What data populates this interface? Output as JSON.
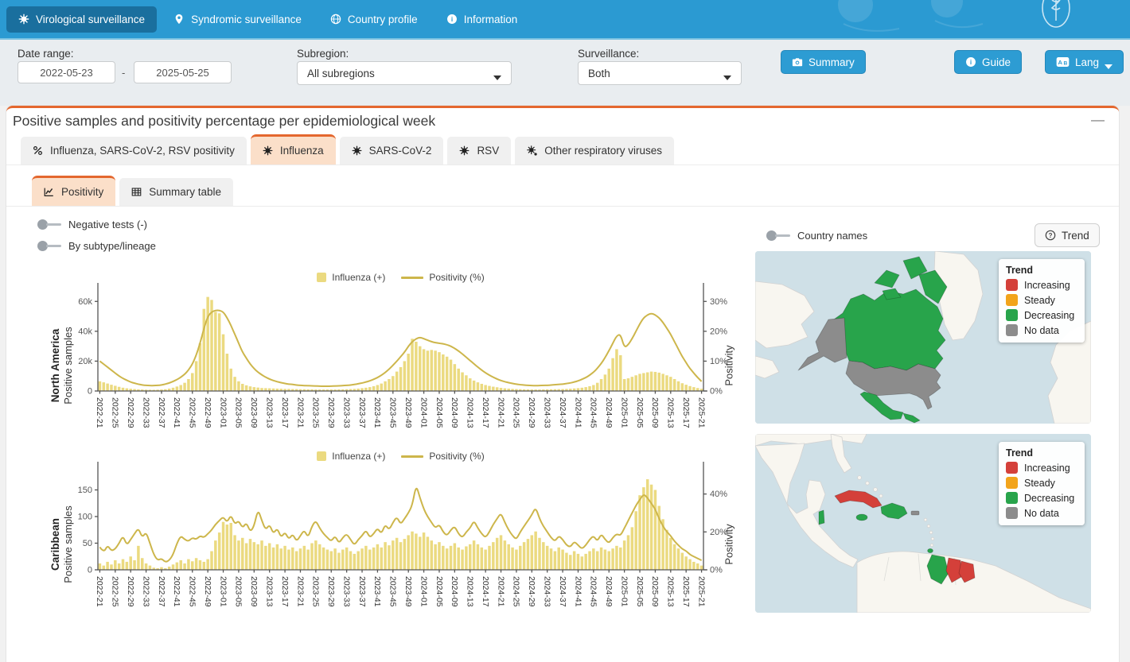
{
  "nav": {
    "items": [
      {
        "label": "Virological surveillance",
        "icon": "virus",
        "active": true
      },
      {
        "label": "Syndromic surveillance",
        "icon": "pin",
        "active": false
      },
      {
        "label": "Country profile",
        "icon": "globe",
        "active": false
      },
      {
        "label": "Information",
        "icon": "info",
        "active": false
      }
    ]
  },
  "filters": {
    "date_range": {
      "label": "Date range:",
      "from": "2022-05-23",
      "to": "2025-05-25",
      "separator": "-"
    },
    "subregion": {
      "label": "Subregion:",
      "value": "All subregions"
    },
    "surveillance": {
      "label": "Surveillance:",
      "value": "Both"
    },
    "buttons": {
      "summary": "Summary",
      "guide": "Guide",
      "lang": "Lang"
    }
  },
  "panel": {
    "title": "Positive samples and positivity percentage per epidemiological week",
    "collapse_label": "—",
    "virus_tabs": [
      {
        "label": "Influenza, SARS-CoV-2, RSV positivity",
        "icon": "percent",
        "active": false
      },
      {
        "label": "Influenza",
        "icon": "virus",
        "active": true
      },
      {
        "label": "SARS-CoV-2",
        "icon": "virus",
        "active": false
      },
      {
        "label": "RSV",
        "icon": "virus",
        "active": false
      },
      {
        "label": "Other respiratory viruses",
        "icon": "virus-other",
        "active": false
      }
    ],
    "view_tabs": [
      {
        "label": "Positivity",
        "icon": "line-chart",
        "active": true
      },
      {
        "label": "Summary table",
        "icon": "table",
        "active": false
      }
    ],
    "toggles": {
      "negative_tests": "Negative tests (-)",
      "by_subtype": "By subtype/lineage",
      "country_names": "Country names"
    },
    "trend_button": "Trend"
  },
  "colors": {
    "bar": "#EBDA80",
    "line": "#CDB64B",
    "nav_bg": "#2B9AD2",
    "nav_active_bg": "#1A6F9E",
    "accent_orange": "#E4672E",
    "active_tab_bg": "#FBDFC9",
    "button_blue": "#2D9CD3",
    "map_ocean": "#CFE0E7",
    "map_land": "#F8F6F0"
  },
  "maps": {
    "trend_colors": {
      "increasing": "#D4403A",
      "steady": "#F2A41B",
      "decreasing": "#28A44B",
      "no_data": "#8C8C8C"
    },
    "legend": {
      "title": "Trend",
      "items": [
        {
          "label": "Increasing",
          "key": "increasing"
        },
        {
          "label": "Steady",
          "key": "steady"
        },
        {
          "label": "Decreasing",
          "key": "decreasing"
        },
        {
          "label": "No data",
          "key": "no_data"
        }
      ]
    },
    "maps_list": [
      {
        "name": "north-america-trend-map"
      },
      {
        "name": "caribbean-trend-map"
      }
    ]
  },
  "chart_data": [
    {
      "type": "bar+line",
      "region": "North America",
      "y_left_label": "Positive samples",
      "y_right_label": "Positivity",
      "x_tick_labels": [
        "2022-21",
        "2022-25",
        "2022-29",
        "2022-33",
        "2022-37",
        "2022-41",
        "2022-45",
        "2022-49",
        "2023-01",
        "2023-05",
        "2023-09",
        "2023-13",
        "2023-17",
        "2023-21",
        "2023-25",
        "2023-29",
        "2023-33",
        "2023-37",
        "2023-41",
        "2023-45",
        "2023-49",
        "2024-01",
        "2024-05",
        "2024-09",
        "2024-13",
        "2024-17",
        "2024-21",
        "2024-25",
        "2024-29",
        "2024-33",
        "2024-37",
        "2024-41",
        "2024-45",
        "2024-49",
        "2025-01",
        "2025-05",
        "2025-09",
        "2025-13",
        "2025-17",
        "2025-21"
      ],
      "axis_left": {
        "ticks": [
          0,
          20000,
          40000,
          60000
        ],
        "labels": [
          "0",
          "20k",
          "40k",
          "60k"
        ],
        "max": 66000
      },
      "axis_right": {
        "ticks": [
          0,
          10,
          20,
          30
        ],
        "labels": [
          "0%",
          "10%",
          "20%",
          "30%"
        ],
        "max": 33
      },
      "series": [
        {
          "name": "Influenza (+)",
          "type": "bar",
          "values": [
            6500,
            5800,
            5000,
            4200,
            3500,
            2800,
            2200,
            1800,
            1500,
            1300,
            1100,
            1000,
            900,
            850,
            800,
            900,
            1000,
            1200,
            1600,
            2200,
            3000,
            4000,
            5500,
            8000,
            12000,
            20000,
            32000,
            55000,
            63000,
            61000,
            53000,
            52000,
            38000,
            25000,
            15000,
            9500,
            6500,
            4800,
            3800,
            3100,
            2600,
            2300,
            2000,
            1900,
            1800,
            1700,
            1600,
            1500,
            1400,
            1400,
            1300,
            1300,
            1200,
            1200,
            1100,
            1100,
            1000,
            1000,
            1000,
            1000,
            1000,
            1000,
            1100,
            1100,
            1200,
            1300,
            1400,
            1600,
            1900,
            2200,
            2600,
            3200,
            4000,
            5000,
            6500,
            8000,
            10000,
            13000,
            16000,
            20000,
            25000,
            35000,
            33000,
            30000,
            28000,
            27000,
            27500,
            27000,
            26000,
            24500,
            23000,
            21000,
            18000,
            15000,
            12500,
            10500,
            8500,
            7000,
            5800,
            4800,
            4000,
            3400,
            2900,
            2500,
            2100,
            1800,
            1600,
            1400,
            1300,
            1200,
            1100,
            1050,
            1000,
            1000,
            1000,
            1050,
            1100,
            1150,
            1200,
            1250,
            1300,
            1400,
            1500,
            1700,
            1900,
            2200,
            2600,
            3200,
            4000,
            5500,
            8000,
            11000,
            15000,
            22000,
            28000,
            24000,
            8000,
            8500,
            9500,
            10500,
            11500,
            12000,
            12500,
            13000,
            12800,
            12300,
            11500,
            10500,
            9500,
            8000,
            6500,
            5200,
            4200,
            3300,
            2600,
            2000,
            1500
          ]
        },
        {
          "name": "Positivity (%)",
          "type": "line",
          "unit": "%",
          "values": [
            10,
            9,
            8,
            7,
            6,
            5,
            4.2,
            3.6,
            3,
            2.6,
            2.3,
            2,
            1.9,
            1.8,
            1.8,
            1.9,
            2,
            2.3,
            2.7,
            3.2,
            3.8,
            4.6,
            5.6,
            7,
            9,
            12,
            16,
            21,
            25,
            26.5,
            27,
            27,
            26.5,
            24.5,
            22,
            19,
            16,
            13,
            11,
            9,
            7.5,
            6.3,
            5.4,
            4.6,
            4,
            3.5,
            3.1,
            2.8,
            2.5,
            2.3,
            2.2,
            2,
            1.9,
            1.8,
            1.8,
            1.7,
            1.7,
            1.6,
            1.6,
            1.6,
            1.6,
            1.7,
            1.7,
            1.8,
            1.9,
            2,
            2.2,
            2.4,
            2.7,
            3,
            3.4,
            3.9,
            4.5,
            5.3,
            6.2,
            7.3,
            8.6,
            10,
            11.5,
            13,
            15,
            16.5,
            17.5,
            18,
            17.5,
            17,
            16.5,
            16.2,
            16,
            15.8,
            15.5,
            15,
            14.3,
            13.4,
            12.4,
            11.3,
            10.2,
            9.1,
            8,
            7,
            6.1,
            5.3,
            4.6,
            4,
            3.5,
            3.1,
            2.8,
            2.5,
            2.3,
            2.1,
            2,
            1.9,
            1.8,
            1.8,
            1.8,
            1.9,
            1.9,
            2,
            2.1,
            2.2,
            2.3,
            2.5,
            2.7,
            3,
            3.4,
            3.9,
            4.5,
            5.3,
            6.3,
            7.6,
            9.2,
            11.2,
            13.5,
            16,
            18.5,
            19,
            14.5,
            15.5,
            17.5,
            20,
            22.5,
            24.5,
            25.5,
            26,
            25.5,
            24.5,
            23,
            21,
            19,
            16.5,
            14,
            11.5,
            9.5,
            7.5,
            6,
            4.5,
            3.2
          ]
        }
      ]
    },
    {
      "type": "bar+line",
      "region": "Caribbean",
      "y_left_label": "Positive samples",
      "y_right_label": "Positivity",
      "x_tick_labels": [
        "2022-21",
        "2022-25",
        "2022-29",
        "2022-33",
        "2022-37",
        "2022-41",
        "2022-45",
        "2022-49",
        "2023-01",
        "2023-05",
        "2023-09",
        "2023-13",
        "2023-17",
        "2023-21",
        "2023-25",
        "2023-29",
        "2023-33",
        "2023-37",
        "2023-41",
        "2023-45",
        "2023-49",
        "2024-01",
        "2024-05",
        "2024-09",
        "2024-13",
        "2024-17",
        "2024-21",
        "2024-25",
        "2024-29",
        "2024-33",
        "2024-37",
        "2024-41",
        "2024-45",
        "2024-49",
        "2025-01",
        "2025-05",
        "2025-09",
        "2025-13",
        "2025-17",
        "2025-21"
      ],
      "axis_left": {
        "ticks": [
          0,
          50,
          100,
          150
        ],
        "labels": [
          "0",
          "50",
          "100",
          "150"
        ],
        "max": 185
      },
      "axis_right": {
        "ticks": [
          0,
          20,
          40
        ],
        "labels": [
          "0%",
          "20%",
          "40%"
        ],
        "max": 52
      },
      "series": [
        {
          "name": "Influenza (+)",
          "type": "bar",
          "values": [
            12,
            8,
            15,
            10,
            18,
            12,
            20,
            15,
            25,
            18,
            45,
            22,
            12,
            8,
            4,
            3,
            5,
            3,
            6,
            10,
            14,
            18,
            12,
            20,
            16,
            22,
            18,
            15,
            20,
            35,
            55,
            70,
            90,
            85,
            88,
            65,
            55,
            60,
            50,
            58,
            52,
            48,
            55,
            45,
            50,
            42,
            48,
            40,
            45,
            38,
            42,
            35,
            40,
            45,
            38,
            50,
            55,
            48,
            42,
            38,
            35,
            40,
            32,
            38,
            42,
            35,
            30,
            35,
            40,
            45,
            38,
            42,
            48,
            42,
            52,
            46,
            55,
            60,
            52,
            58,
            65,
            72,
            68,
            62,
            70,
            62,
            55,
            48,
            52,
            45,
            40,
            45,
            50,
            42,
            38,
            44,
            48,
            55,
            48,
            42,
            38,
            45,
            52,
            60,
            65,
            55,
            48,
            42,
            38,
            45,
            52,
            58,
            65,
            72,
            60,
            52,
            45,
            40,
            35,
            42,
            38,
            32,
            28,
            35,
            30,
            25,
            30,
            35,
            40,
            35,
            42,
            38,
            35,
            40,
            45,
            42,
            55,
            65,
            80,
            110,
            140,
            155,
            170,
            160,
            150,
            120,
            95,
            75,
            60,
            48,
            40,
            32,
            25,
            20,
            15,
            12,
            8
          ]
        },
        {
          "name": "Positivity (%)",
          "type": "line",
          "unit": "%",
          "values": [
            12,
            9,
            13,
            10,
            11,
            14,
            18,
            13,
            16,
            19,
            22,
            17,
            20,
            14,
            8,
            5,
            6,
            4,
            5,
            8,
            14,
            18,
            16,
            15,
            17,
            16,
            18,
            17,
            19,
            21,
            24,
            26,
            28,
            25,
            29,
            24,
            26,
            22,
            25,
            20,
            23,
            32,
            26,
            21,
            24,
            19,
            22,
            17,
            20,
            16,
            19,
            15,
            18,
            21,
            17,
            23,
            26,
            22,
            19,
            17,
            15,
            18,
            14,
            17,
            19,
            16,
            13,
            16,
            18,
            21,
            17,
            19,
            22,
            19,
            24,
            21,
            25,
            28,
            24,
            27,
            30,
            34,
            45,
            38,
            32,
            28,
            25,
            22,
            24,
            20,
            18,
            21,
            23,
            19,
            17,
            20,
            22,
            26,
            22,
            19,
            17,
            20,
            24,
            27,
            30,
            25,
            21,
            18,
            16,
            20,
            23,
            26,
            29,
            33,
            27,
            23,
            20,
            17,
            15,
            18,
            16,
            13,
            12,
            15,
            13,
            11,
            13,
            16,
            18,
            15,
            19,
            16,
            14,
            17,
            19,
            18,
            22,
            26,
            30,
            34,
            37,
            40,
            38,
            35,
            32,
            27,
            23,
            20,
            18,
            15,
            13,
            11,
            10,
            8,
            7,
            6,
            5
          ]
        }
      ]
    }
  ]
}
